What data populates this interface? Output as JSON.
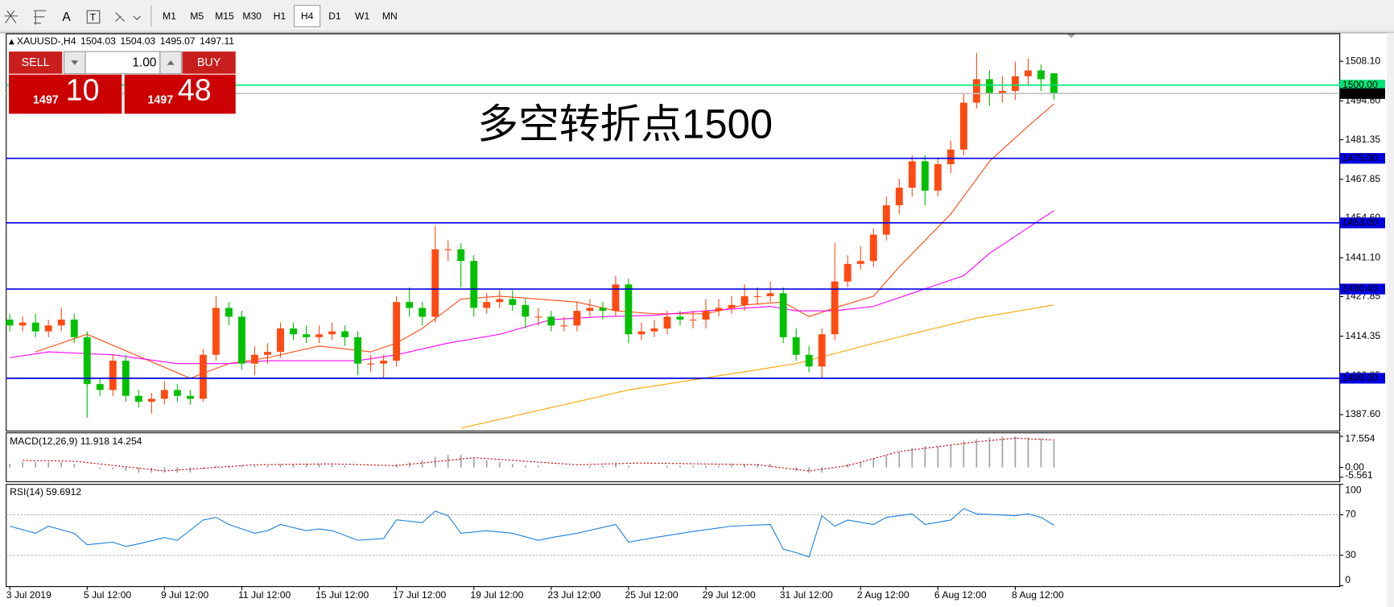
{
  "toolbar": {
    "periods": [
      "M1",
      "M5",
      "M15",
      "M30",
      "H1",
      "H4",
      "D1",
      "W1",
      "MN"
    ],
    "active": "H4"
  },
  "trade_panel": {
    "sell": "SELL",
    "lots": "1.00",
    "buy": "BUY",
    "bid_big": "1497",
    "bid_small": "10",
    "ask_big": "1497",
    "ask_small": "48"
  },
  "chart_data": [
    {
      "type": "candlestick",
      "title": "XAUUSD-,H4",
      "annotation": "多空转折点1500",
      "categories": [
        "3 Jul 2019",
        null,
        null,
        null,
        null,
        null,
        "5 Jul 12:00",
        null,
        null,
        null,
        null,
        null,
        "9 Jul 12:00",
        null,
        null,
        null,
        null,
        null,
        "11 Jul 12:00",
        null,
        null,
        null,
        null,
        null,
        "15 Jul 12:00",
        null,
        null,
        null,
        null,
        null,
        "17 Jul 12:00",
        null,
        null,
        null,
        null,
        null,
        "19 Jul 12:00",
        null,
        null,
        null,
        null,
        null,
        "23 Jul 12:00",
        null,
        null,
        null,
        null,
        null,
        "25 Jul 12:00",
        null,
        null,
        null,
        null,
        null,
        "29 Jul 12:00",
        null,
        null,
        null,
        null,
        null,
        "31 Jul 12:00",
        null,
        null,
        null,
        null,
        null,
        "2 Aug 12:00",
        null,
        null,
        null,
        null,
        null,
        "6 Aug 12:00",
        null,
        null,
        null,
        null,
        null,
        "8 Aug 12:00",
        null,
        null,
        null
      ],
      "open": [
        1420,
        1418,
        1419,
        1416,
        1418,
        1420,
        1414,
        1398,
        1396,
        1406,
        1394,
        1392,
        1393,
        1396,
        1394,
        1393,
        1408,
        1424,
        1421,
        1405,
        1408,
        1409,
        1417,
        1415,
        1414,
        1415,
        1416,
        1414,
        1405,
        1405,
        1406,
        1426,
        1424,
        1421,
        1444,
        1444,
        1440,
        1424,
        1426,
        1427,
        1425,
        1421,
        1421,
        1418,
        1418,
        1423,
        1424,
        1423,
        1432,
        1415,
        1416,
        1417,
        1421,
        1420,
        1420,
        1423,
        1424,
        1425,
        1428,
        1428,
        1429,
        1414,
        1408,
        1404,
        1415,
        1433,
        1439,
        1440,
        1449,
        1459,
        1465,
        1474,
        1464,
        1473,
        1478,
        1494,
        1502,
        1497,
        1498,
        1503,
        1505,
        1504.03
      ],
      "high": [
        1422,
        1421,
        1422,
        1420,
        1424,
        1422,
        1416,
        1400,
        1408,
        1408,
        1396,
        1395,
        1399,
        1398,
        1396,
        1410,
        1428,
        1426,
        1423,
        1411,
        1412,
        1419,
        1419,
        1418,
        1418,
        1419,
        1418,
        1416,
        1408,
        1408,
        1428,
        1431,
        1426,
        1452,
        1447,
        1446,
        1442,
        1429,
        1430,
        1430,
        1427,
        1424,
        1423,
        1421,
        1426,
        1427,
        1426,
        1435,
        1434,
        1419,
        1420,
        1423,
        1423,
        1423,
        1427,
        1427,
        1428,
        1432,
        1431,
        1433,
        1431,
        1417,
        1411,
        1417,
        1446,
        1442,
        1445,
        1451,
        1462,
        1468,
        1476,
        1476,
        1475,
        1481,
        1497,
        1511,
        1505,
        1503,
        1508,
        1509,
        1507,
        1504.03
      ],
      "low": [
        1416,
        1416,
        1414,
        1414,
        1416,
        1412,
        1386.5,
        1394,
        1394,
        1392,
        1390,
        1388,
        1391,
        1392,
        1391,
        1392,
        1406,
        1418,
        1403,
        1401,
        1405,
        1407,
        1413,
        1412,
        1412,
        1413,
        1411,
        1401,
        1402,
        1400,
        1404,
        1421,
        1418,
        1419,
        1440,
        1431,
        1421,
        1422,
        1424,
        1423,
        1417,
        1418,
        1416,
        1416,
        1416,
        1421,
        1420,
        1421,
        1412,
        1413,
        1414,
        1415,
        1418,
        1417,
        1417,
        1421,
        1422,
        1423,
        1425,
        1426,
        1412,
        1406,
        1402,
        1400.2,
        1413,
        1431,
        1437,
        1438,
        1447,
        1456,
        1462,
        1459,
        1462,
        1470,
        1476,
        1492,
        1493,
        1494,
        1495,
        1500,
        1498,
        1495.07
      ],
      "close": [
        1418,
        1419,
        1416,
        1418,
        1420,
        1414,
        1398,
        1396,
        1406,
        1394,
        1392,
        1393,
        1396,
        1394,
        1393,
        1408,
        1424,
        1421,
        1405,
        1408,
        1409,
        1417,
        1415,
        1414,
        1415,
        1416,
        1414,
        1405,
        1405,
        1406,
        1426,
        1424,
        1421,
        1444,
        1444,
        1440,
        1424,
        1426,
        1427,
        1425,
        1421,
        1421,
        1418,
        1418,
        1423,
        1424,
        1423,
        1432,
        1415,
        1416,
        1417,
        1421,
        1420,
        1420,
        1423,
        1424,
        1425,
        1428,
        1428,
        1429,
        1414,
        1408,
        1404,
        1415,
        1433,
        1439,
        1440,
        1449,
        1459,
        1465,
        1474,
        1464,
        1473,
        1478,
        1494,
        1502,
        1497,
        1498,
        1503,
        1505,
        1502,
        1497.11
      ],
      "up_color": "#ff4a12",
      "down_color": "#00c000",
      "lines": [
        {
          "color": "#ff4a12",
          "x": [
            2,
            6,
            14,
            17,
            20,
            24,
            28,
            30,
            32,
            35,
            38,
            41,
            44,
            47,
            50,
            54,
            57,
            60,
            62,
            64,
            67,
            69,
            73,
            76,
            79,
            81
          ],
          "values": [
            1409,
            1415,
            1400,
            1405,
            1407,
            1411,
            1409,
            1412,
            1417,
            1427,
            1428,
            1427,
            1426,
            1423,
            1422,
            1422,
            1425,
            1426,
            1421,
            1424,
            1428,
            1438,
            1456,
            1474,
            1486,
            1493.6
          ]
        },
        {
          "color": "#ff00ff",
          "x": [
            0,
            3,
            8,
            13,
            17,
            20,
            27,
            30,
            34,
            38,
            42,
            46,
            50,
            54,
            59,
            61,
            64,
            67,
            71,
            74,
            76,
            81
          ],
          "values": [
            1407,
            1409,
            1408,
            1405,
            1405,
            1406,
            1406,
            1408,
            1412,
            1415,
            1420,
            1421,
            1421.5,
            1423,
            1424.5,
            1423,
            1423,
            1424.5,
            1430.5,
            1435,
            1442.6,
            1457.2
          ]
        },
        {
          "color": "#ffa500",
          "x": [
            35,
            48,
            61,
            68,
            75,
            81
          ],
          "values": [
            1383,
            1396,
            1405,
            1413,
            1420.5,
            1425
          ]
        }
      ],
      "levels": [
        {
          "value": 1500,
          "label": "1500.00",
          "color": "#00e676"
        },
        {
          "value": 1475,
          "label": "1475.00",
          "color": "#0000e0"
        },
        {
          "value": 1453,
          "label": "1453.00",
          "color": "#0000e0"
        },
        {
          "value": 1430.43,
          "label": "1430.43",
          "color": "#0000e0"
        },
        {
          "value": 1400,
          "label": "1400.00",
          "color": "#0000e0"
        }
      ],
      "current": {
        "value": 1497.11,
        "label": "1497.11",
        "color": "#c0c0c0"
      },
      "ylim": [
        1382,
        1517.5
      ],
      "yticks": [
        {
          "value": 1508.1,
          "label": "1508.10"
        },
        {
          "value": 1494.6,
          "label": "1494.60"
        },
        1481.35,
        1467.85,
        {
          "value": 1454.6,
          "label": "1454.60"
        },
        {
          "value": 1441.1,
          "label": "1441.10"
        },
        1427.85,
        1414.35,
        1400.85,
        {
          "value": 1387.6,
          "label": "1387.60"
        }
      ],
      "grid": false
    },
    {
      "type": "macd",
      "title": "MACD(12,26,9) 11.918 14.254",
      "values": [
        2,
        3,
        3,
        3,
        3,
        2,
        0,
        -1,
        -1,
        -2,
        -3,
        -3,
        -3,
        -3,
        -3,
        -1,
        1,
        1,
        1,
        1,
        1,
        2,
        2,
        2,
        2,
        2,
        1,
        0,
        0,
        0,
        2,
        3,
        4,
        6,
        7,
        7,
        5,
        4,
        3,
        2,
        1,
        1,
        0,
        0,
        0,
        1,
        1,
        2,
        1,
        0,
        0,
        1,
        1,
        1,
        1,
        1,
        2,
        2,
        2,
        2,
        0,
        -2,
        -3,
        -3,
        0,
        2,
        3,
        5,
        7,
        9,
        11,
        12,
        12,
        13,
        15,
        16,
        17,
        17.5,
        17.5,
        17,
        16.5,
        15
      ],
      "color": "#a0a0a0",
      "signal": {
        "color": "#e00000",
        "x": [
          1,
          5,
          12,
          19,
          25,
          30,
          36,
          44,
          49,
          58,
          62,
          65,
          69,
          75,
          78,
          81
        ],
        "values": [
          4,
          3.5,
          -2,
          1.5,
          2,
          1,
          5.5,
          1.5,
          2.5,
          1.5,
          -2,
          1,
          9,
          14.5,
          16.5,
          15.5
        ]
      },
      "ylim": [
        -5.561,
        17.554
      ],
      "yticks": [
        17.554,
        {
          "value": 0,
          "label": "0.00"
        },
        -5.561
      ]
    },
    {
      "type": "line",
      "title": "RSI(14) 59.6912",
      "color": "#1e7fe0",
      "x": [
        0,
        2,
        3,
        5,
        6,
        8,
        9,
        10,
        12,
        13,
        15,
        16,
        17,
        19,
        20,
        21,
        23,
        24,
        25,
        27,
        29,
        30,
        32,
        33,
        34,
        35,
        37,
        39,
        41,
        42,
        44,
        47,
        48,
        50,
        53,
        56,
        59,
        60,
        61,
        62,
        63,
        64,
        65,
        67,
        68,
        70,
        71,
        73,
        74,
        75,
        78,
        79,
        80,
        81
      ],
      "values": [
        58.7,
        51.7,
        58.7,
        51.7,
        40.4,
        43,
        38.7,
        41.3,
        47.4,
        44.8,
        64.8,
        67.4,
        60.4,
        51.7,
        54.3,
        60.4,
        54.3,
        56,
        54.3,
        44.8,
        46.5,
        65,
        62.2,
        73.5,
        69.1,
        51.7,
        54.3,
        51.7,
        44.8,
        47.4,
        51.7,
        60.4,
        43,
        47.4,
        53.5,
        58.7,
        60.4,
        36,
        32.6,
        28.3,
        69,
        58.7,
        64.8,
        60.4,
        67.4,
        70.9,
        60.4,
        64.8,
        76,
        70.9,
        69.1,
        70.9,
        67.4,
        59.6912
      ],
      "ylim": [
        0,
        100
      ],
      "yticks": [
        100,
        70,
        30,
        0
      ]
    }
  ]
}
